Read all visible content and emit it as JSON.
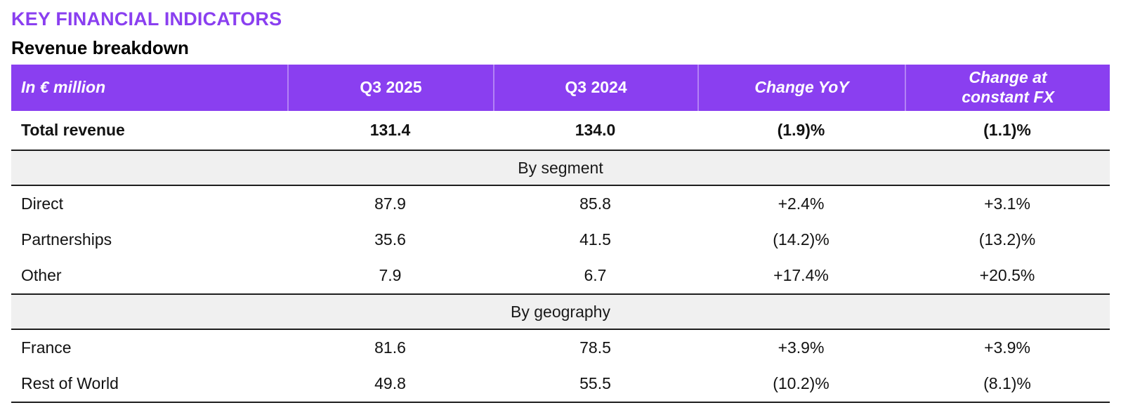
{
  "page": {
    "title": "KEY FINANCIAL INDICATORS",
    "subtitle": "Revenue breakdown"
  },
  "colors": {
    "brand_purple": "#8A3FF0",
    "header_text": "#FFFFFF",
    "section_band_gray": "#F0F0F0",
    "border_dark": "#1E1E1E",
    "body_text": "#121212"
  },
  "table": {
    "columns": [
      "In € million",
      "Q3 2025",
      "Q3 2024",
      "Change YoY",
      "Change at constant FX"
    ],
    "total_row": {
      "label": "Total revenue",
      "values": [
        "131.4",
        "134.0",
        "(1.9)%",
        "(1.1)%"
      ]
    },
    "sections": [
      {
        "title": "By segment",
        "rows": [
          {
            "label": "Direct",
            "values": [
              "87.9",
              "85.8",
              "+2.4%",
              "+3.1%"
            ]
          },
          {
            "label": "Partnerships",
            "values": [
              "35.6",
              "41.5",
              "(14.2)%",
              "(13.2)%"
            ]
          },
          {
            "label": "Other",
            "values": [
              "7.9",
              "6.7",
              "+17.4%",
              "+20.5%"
            ]
          }
        ]
      },
      {
        "title": "By geography",
        "rows": [
          {
            "label": "France",
            "values": [
              "81.6",
              "78.5",
              "+3.9%",
              "+3.9%"
            ]
          },
          {
            "label": "Rest of World",
            "values": [
              "49.8",
              "55.5",
              "(10.2)%",
              "(8.1)%"
            ]
          }
        ]
      }
    ]
  },
  "chart_data": {
    "type": "table",
    "title": "Revenue breakdown (In € million)",
    "columns": [
      "In € million",
      "Q3 2025",
      "Q3 2024",
      "Change YoY",
      "Change at constant FX"
    ],
    "rows": [
      [
        "Total revenue",
        131.4,
        134.0,
        "(1.9)%",
        "(1.1)%"
      ],
      [
        "Direct",
        87.9,
        85.8,
        "+2.4%",
        "+3.1%"
      ],
      [
        "Partnerships",
        35.6,
        41.5,
        "(14.2)%",
        "(13.2)%"
      ],
      [
        "Other",
        7.9,
        6.7,
        "+17.4%",
        "+20.5%"
      ],
      [
        "France",
        81.6,
        78.5,
        "+3.9%",
        "+3.9%"
      ],
      [
        "Rest of World",
        49.8,
        55.5,
        "(10.2)%",
        "(8.1)%"
      ]
    ]
  }
}
